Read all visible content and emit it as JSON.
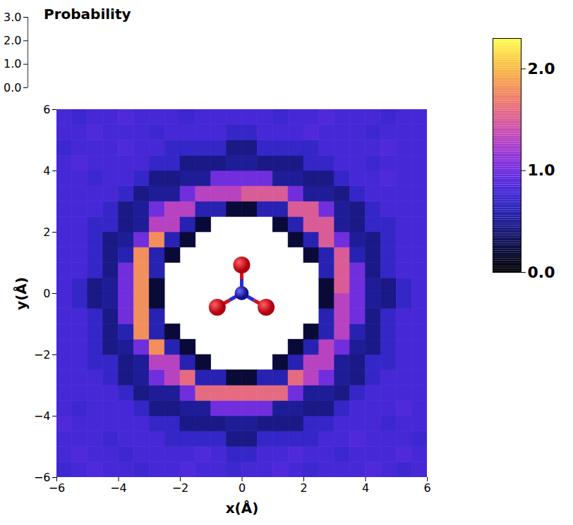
{
  "chart_data": {
    "type": "heatmap",
    "x_label": "x(Å)",
    "y_label": "y(Å)",
    "z_label": "Probability",
    "xlim": [
      -6,
      6
    ],
    "ylim": [
      -6,
      6
    ],
    "zlim": [
      0,
      3
    ],
    "xticks": [
      -6,
      -4,
      -2,
      0,
      2,
      4,
      6
    ],
    "yticks": [
      -6,
      -4,
      -2,
      0,
      2,
      4,
      6
    ],
    "zticks": [
      0,
      1,
      2,
      3
    ],
    "x_bins": [
      -6,
      -5.5,
      -5,
      -4.5,
      -4,
      -3.5,
      -3,
      -2.5,
      -2,
      -1.5,
      -1,
      -0.5,
      0,
      0.5,
      1,
      1.5,
      2,
      2.5,
      3,
      3.5,
      4,
      4.5,
      5,
      5.5,
      6
    ],
    "y_bins": [
      -6,
      -5.5,
      -5,
      -4.5,
      -4,
      -3.5,
      -3,
      -2.5,
      -2,
      -1.5,
      -1,
      -0.5,
      0,
      0.5,
      1,
      1.5,
      2,
      2.5,
      3,
      3.5,
      4,
      4.5,
      5,
      5.5,
      6
    ],
    "values": [
      [
        0.75,
        0.8,
        0.85,
        0.8,
        0.8,
        0.75,
        0.8,
        0.8,
        0.85,
        0.8,
        0.8,
        0.75,
        0.8,
        0.8,
        0.85,
        0.8,
        0.75,
        0.8,
        0.8,
        0.8,
        0.85,
        0.8,
        0.75,
        0.8
      ],
      [
        0.8,
        0.85,
        0.8,
        0.8,
        0.75,
        0.8,
        0.8,
        0.8,
        0.8,
        0.85,
        0.8,
        0.7,
        0.7,
        0.8,
        0.8,
        0.85,
        0.8,
        0.8,
        0.75,
        0.8,
        0.8,
        0.8,
        0.85,
        0.8
      ],
      [
        0.8,
        0.8,
        0.8,
        0.75,
        0.8,
        0.8,
        0.8,
        0.7,
        0.7,
        0.7,
        0.7,
        0.45,
        0.45,
        0.7,
        0.7,
        0.7,
        0.7,
        0.8,
        0.8,
        0.85,
        0.8,
        0.8,
        0.8,
        0.75
      ],
      [
        0.85,
        0.8,
        0.8,
        0.8,
        0.8,
        0.8,
        0.7,
        0.7,
        0.45,
        0.45,
        0.45,
        0.5,
        0.5,
        0.45,
        0.45,
        0.45,
        0.7,
        0.7,
        0.8,
        0.8,
        0.8,
        0.75,
        0.8,
        0.8
      ],
      [
        0.8,
        0.75,
        0.8,
        0.8,
        0.8,
        0.7,
        0.45,
        0.45,
        0.5,
        0.5,
        1.0,
        1.0,
        1.0,
        1.0,
        0.5,
        0.5,
        0.45,
        0.45,
        0.7,
        0.8,
        0.8,
        0.8,
        0.85,
        0.8
      ],
      [
        0.8,
        0.8,
        0.8,
        0.8,
        0.7,
        0.45,
        0.5,
        0.5,
        1.0,
        1.6,
        1.6,
        1.6,
        1.6,
        1.6,
        1.6,
        1.0,
        0.5,
        0.5,
        0.45,
        0.7,
        0.8,
        0.8,
        0.8,
        0.8
      ],
      [
        0.8,
        0.8,
        0.8,
        0.7,
        0.45,
        0.5,
        1.0,
        1.3,
        1.6,
        0.6,
        0.6,
        0.2,
        0.2,
        0.6,
        0.6,
        1.6,
        1.3,
        1.0,
        0.5,
        0.45,
        0.7,
        0.8,
        0.8,
        0.8
      ],
      [
        0.8,
        0.8,
        0.7,
        0.7,
        0.45,
        0.5,
        1.3,
        1.3,
        0.6,
        0.2,
        null,
        null,
        null,
        null,
        0.2,
        0.6,
        1.3,
        1.3,
        0.5,
        0.45,
        0.7,
        0.7,
        0.8,
        0.8
      ],
      [
        0.8,
        0.8,
        0.7,
        0.45,
        0.5,
        1.0,
        1.8,
        0.6,
        0.2,
        null,
        null,
        null,
        null,
        null,
        null,
        0.2,
        0.6,
        1.3,
        1.0,
        0.5,
        0.45,
        0.7,
        0.8,
        0.8
      ],
      [
        0.8,
        0.8,
        0.7,
        0.45,
        0.6,
        1.8,
        0.6,
        0.2,
        null,
        null,
        null,
        null,
        null,
        null,
        null,
        null,
        0.2,
        0.6,
        1.3,
        0.6,
        0.45,
        0.7,
        0.8,
        0.8
      ],
      [
        0.8,
        0.8,
        0.7,
        0.45,
        1.0,
        1.8,
        0.6,
        null,
        null,
        null,
        null,
        null,
        null,
        null,
        null,
        null,
        null,
        0.6,
        1.3,
        1.0,
        0.45,
        0.7,
        0.8,
        0.8
      ],
      [
        0.8,
        0.7,
        0.45,
        0.5,
        1.0,
        1.8,
        0.2,
        null,
        null,
        null,
        null,
        null,
        null,
        null,
        null,
        null,
        null,
        0.2,
        1.3,
        1.0,
        0.5,
        0.45,
        0.7,
        0.8
      ],
      [
        0.8,
        0.7,
        0.45,
        0.5,
        1.0,
        1.8,
        0.2,
        null,
        null,
        null,
        null,
        null,
        null,
        null,
        null,
        null,
        null,
        0.2,
        1.5,
        1.0,
        0.5,
        0.45,
        0.7,
        0.8
      ],
      [
        0.8,
        0.8,
        0.7,
        0.45,
        1.0,
        1.8,
        0.6,
        null,
        null,
        null,
        null,
        null,
        null,
        null,
        null,
        null,
        null,
        0.6,
        1.5,
        1.0,
        0.45,
        0.7,
        0.8,
        0.8
      ],
      [
        0.8,
        0.8,
        0.7,
        0.45,
        0.6,
        1.8,
        0.6,
        0.2,
        null,
        null,
        null,
        null,
        null,
        null,
        null,
        null,
        0.2,
        0.6,
        1.5,
        0.6,
        0.45,
        0.7,
        0.8,
        0.8
      ],
      [
        0.8,
        0.8,
        0.7,
        0.45,
        0.5,
        1.0,
        1.8,
        0.6,
        0.2,
        null,
        null,
        null,
        null,
        null,
        null,
        0.2,
        0.6,
        1.5,
        1.0,
        0.5,
        0.45,
        0.7,
        0.8,
        0.8
      ],
      [
        0.8,
        0.8,
        0.7,
        0.7,
        0.45,
        0.5,
        1.3,
        1.3,
        0.6,
        0.2,
        null,
        null,
        null,
        null,
        0.2,
        0.6,
        1.5,
        1.5,
        0.5,
        0.45,
        0.7,
        0.7,
        0.8,
        0.8
      ],
      [
        0.8,
        0.8,
        0.8,
        0.7,
        0.45,
        0.5,
        1.0,
        1.3,
        1.3,
        0.6,
        0.6,
        0.2,
        0.2,
        0.6,
        0.6,
        1.5,
        1.5,
        1.0,
        0.5,
        0.45,
        0.7,
        0.8,
        0.8,
        0.8
      ],
      [
        0.8,
        0.8,
        0.8,
        0.8,
        0.7,
        0.45,
        0.5,
        0.5,
        1.0,
        1.3,
        1.3,
        1.3,
        1.5,
        1.5,
        1.5,
        1.0,
        0.5,
        0.5,
        0.45,
        0.7,
        0.8,
        0.8,
        0.8,
        0.8
      ],
      [
        0.8,
        0.8,
        0.75,
        0.8,
        0.8,
        0.7,
        0.45,
        0.45,
        0.5,
        0.5,
        1.0,
        1.0,
        1.0,
        1.0,
        0.5,
        0.5,
        0.45,
        0.45,
        0.7,
        0.8,
        0.8,
        0.85,
        0.8,
        0.8
      ],
      [
        0.8,
        0.85,
        0.8,
        0.8,
        0.8,
        0.8,
        0.7,
        0.7,
        0.45,
        0.45,
        0.45,
        0.5,
        0.5,
        0.45,
        0.45,
        0.45,
        0.7,
        0.7,
        0.8,
        0.8,
        0.75,
        0.8,
        0.8,
        0.8
      ],
      [
        0.75,
        0.8,
        0.8,
        0.8,
        0.85,
        0.8,
        0.8,
        0.7,
        0.7,
        0.7,
        0.7,
        0.45,
        0.45,
        0.7,
        0.7,
        0.7,
        0.7,
        0.8,
        0.8,
        0.8,
        0.8,
        0.85,
        0.8,
        0.8
      ],
      [
        0.8,
        0.8,
        0.85,
        0.8,
        0.8,
        0.8,
        0.75,
        0.8,
        0.8,
        0.8,
        0.8,
        0.7,
        0.7,
        0.8,
        0.8,
        0.8,
        0.85,
        0.8,
        0.8,
        0.8,
        0.75,
        0.8,
        0.8,
        0.8
      ],
      [
        0.8,
        0.75,
        0.8,
        0.8,
        0.85,
        0.8,
        0.8,
        0.8,
        0.75,
        0.8,
        0.8,
        0.8,
        0.8,
        0.8,
        0.75,
        0.8,
        0.8,
        0.85,
        0.8,
        0.8,
        0.8,
        0.75,
        0.8,
        0.8
      ]
    ],
    "colorbar": {
      "range": [
        0,
        2.3
      ],
      "ticks": [
        0,
        1,
        2
      ]
    }
  }
}
